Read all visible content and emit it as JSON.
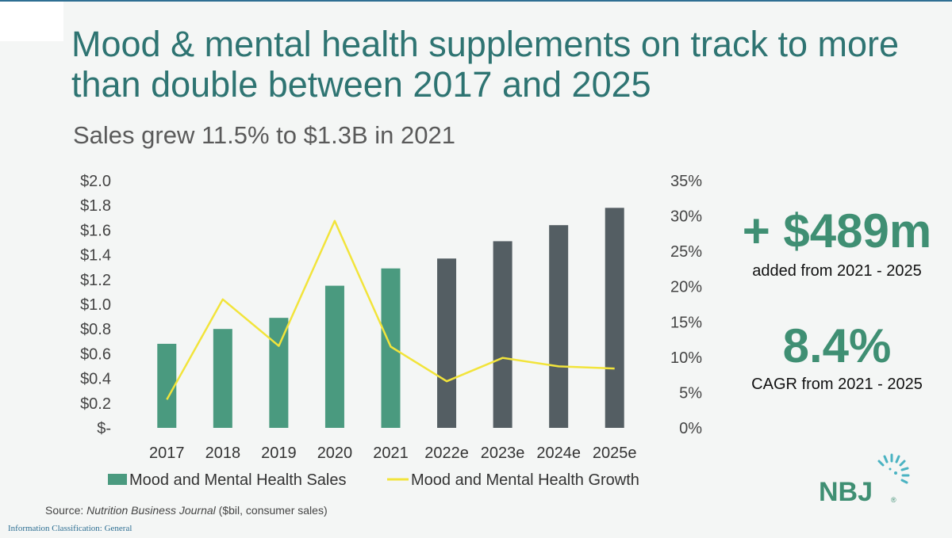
{
  "title": "Mood & mental health supplements on track to more than double between 2017 and 2025",
  "subtitle": "Sales grew 11.5% to $1.3B in 2021",
  "kpis": [
    {
      "value": "+ $489m",
      "label": "added from 2021 - 2025"
    },
    {
      "value": "8.4%",
      "label": "CAGR from 2021 - 2025"
    }
  ],
  "source": {
    "prefix": "Source: ",
    "publication": "Nutrition Business Journal",
    "suffix": " ($bil, consumer sales)"
  },
  "classification": "Information Classification: General",
  "logo": {
    "text": "NBJ",
    "mark": "®"
  },
  "colors": {
    "actual_bar": "#4a9a7f",
    "estimate_bar": "#545e63",
    "growth_line": "#f2e43b",
    "accent": "#3f8f73"
  },
  "chart_data": {
    "type": "bar",
    "categories": [
      "2017",
      "2018",
      "2019",
      "2020",
      "2021",
      "2022e",
      "2023e",
      "2024e",
      "2025e"
    ],
    "series": [
      {
        "name": "Mood and Mental Health Sales",
        "type": "bar",
        "axis": "left",
        "values": [
          0.68,
          0.8,
          0.89,
          1.15,
          1.29,
          1.37,
          1.51,
          1.64,
          1.78
        ],
        "estimate_from_index": 5
      },
      {
        "name": "Mood and Mental Health Growth",
        "type": "line",
        "axis": "right",
        "values": [
          4.0,
          18.2,
          11.6,
          29.3,
          11.5,
          6.6,
          9.9,
          8.7,
          8.4
        ]
      }
    ],
    "y_left": {
      "range": [
        0,
        2.0
      ],
      "ticks": [
        "$-",
        "$0.2",
        "$0.4",
        "$0.6",
        "$0.8",
        "$1.0",
        "$1.2",
        "$1.4",
        "$1.6",
        "$1.8",
        "$2.0"
      ]
    },
    "y_right": {
      "range": [
        0,
        35
      ],
      "ticks": [
        "0%",
        "5%",
        "10%",
        "15%",
        "20%",
        "25%",
        "30%",
        "35%"
      ]
    },
    "grid": false,
    "legend": "bottom"
  }
}
